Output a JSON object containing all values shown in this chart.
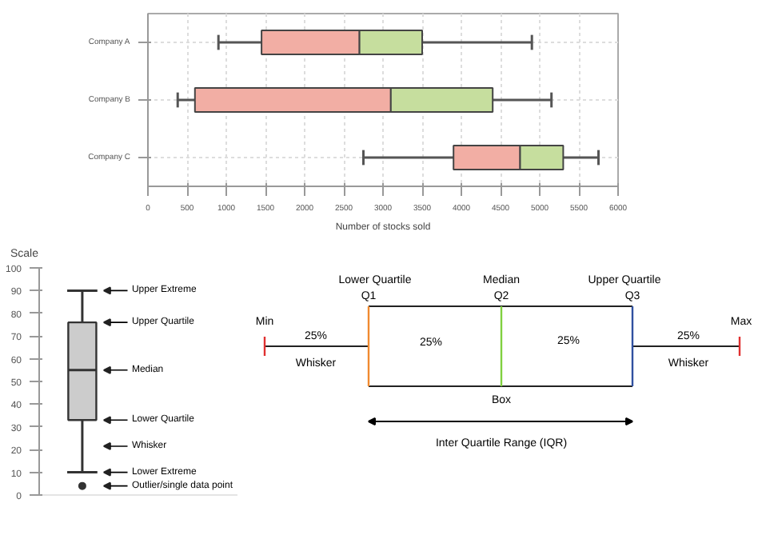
{
  "chart_data": [
    {
      "type": "box",
      "orientation": "horizontal",
      "categories": [
        "Company A",
        "Company B",
        "Company C"
      ],
      "xlabel": "Number of stocks sold",
      "xlim": [
        0,
        6000
      ],
      "xticks": [
        0,
        500,
        1000,
        1500,
        2000,
        2500,
        3000,
        3500,
        4000,
        4500,
        5000,
        5500,
        6000
      ],
      "grid": true,
      "colors": [
        [
          "#f2aea4",
          "#c6de9e"
        ],
        [
          "#f2aea4",
          "#c6de9e"
        ],
        [
          "#f2aea4",
          "#c6de9e"
        ]
      ],
      "boxes": [
        {
          "low": 900,
          "q1": 1450,
          "median": 2700,
          "q3": 3500,
          "high": 4900
        },
        {
          "low": 380,
          "q1": 600,
          "median": 3100,
          "q3": 4400,
          "high": 5150
        },
        {
          "low": 2750,
          "q1": 3900,
          "median": 4750,
          "q3": 5300,
          "high": 5750
        }
      ]
    },
    {
      "type": "box",
      "categories": [
        null
      ],
      "ylabel": "Scale",
      "ylim": [
        0,
        100
      ],
      "yticks": [
        0,
        10,
        20,
        30,
        40,
        50,
        60,
        70,
        80,
        90,
        100
      ],
      "color": "#cccccc",
      "boxes": [
        {
          "low": 10,
          "q1": 33,
          "median": 55,
          "q3": 76,
          "high": 90,
          "outliers": [
            4
          ]
        }
      ],
      "annotations": [
        "Upper Extreme",
        "Upper Quartile",
        "Median",
        "Lower Quartile",
        "Whisker",
        "Lower Extreme",
        "Outlier/single data point"
      ]
    },
    {
      "type": "other",
      "annotations": [
        "Lower Quartile",
        "Q1",
        "Median",
        "Q2",
        "Upper Quartile",
        "Q3",
        "Min",
        "Max",
        "25%",
        "Whisker",
        "25%",
        "25%",
        "25%",
        "Whisker",
        "Box",
        "Inter Quartile Range (IQR)"
      ]
    }
  ]
}
